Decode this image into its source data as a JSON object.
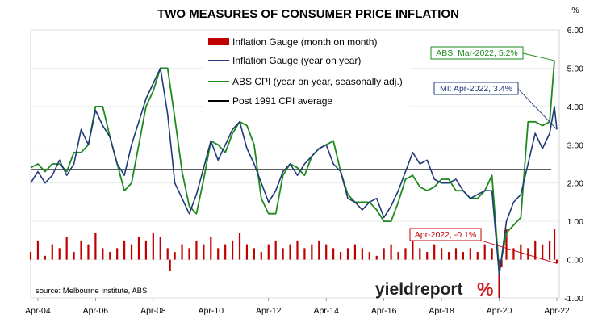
{
  "chart_data": {
    "type": "line",
    "title": "TWO MEASURES OF CONSUMER PRICE INFLATION",
    "y_unit_label": "%",
    "ylim": [
      -1.0,
      6.0
    ],
    "y_ticks": [
      "-1.00",
      "0.00",
      "1.00",
      "2.00",
      "3.00",
      "4.00",
      "5.00",
      "6.00"
    ],
    "x_ticks": [
      "Apr-04",
      "Apr-06",
      "Apr-08",
      "Apr-10",
      "Apr-12",
      "Apr-14",
      "Apr-16",
      "Apr-18",
      "Apr-20",
      "Apr-22"
    ],
    "legend": [
      {
        "label": "Inflation Gauge (month on month)",
        "color": "#c00000",
        "marker": "bar"
      },
      {
        "label": "Inflation Gauge (year on year)",
        "color": "#1f3a78",
        "marker": "line"
      },
      {
        "label": "ABS CPI (year on year, seasonally adj.)",
        "color": "#1e8a1e",
        "marker": "line"
      },
      {
        "label": "Post 1991 CPI average",
        "color": "#000000",
        "marker": "line"
      }
    ],
    "series": [
      {
        "name": "Inflation Gauge (month on month)",
        "type": "bar",
        "color": "#c00000",
        "points": [
          [
            "2004-01",
            0.2
          ],
          [
            "2004-04",
            0.5
          ],
          [
            "2004-07",
            0.1
          ],
          [
            "2004-10",
            0.4
          ],
          [
            "2005-01",
            0.3
          ],
          [
            "2005-04",
            0.6
          ],
          [
            "2005-07",
            0.2
          ],
          [
            "2005-10",
            0.5
          ],
          [
            "2006-01",
            0.4
          ],
          [
            "2006-04",
            0.7
          ],
          [
            "2006-07",
            0.3
          ],
          [
            "2006-10",
            0.2
          ],
          [
            "2007-01",
            0.3
          ],
          [
            "2007-04",
            0.5
          ],
          [
            "2007-07",
            0.4
          ],
          [
            "2007-10",
            0.6
          ],
          [
            "2008-01",
            0.5
          ],
          [
            "2008-04",
            0.7
          ],
          [
            "2008-07",
            0.6
          ],
          [
            "2008-10",
            0.3
          ],
          [
            "2008-11",
            -0.3
          ],
          [
            "2009-01",
            0.2
          ],
          [
            "2009-04",
            0.4
          ],
          [
            "2009-07",
            0.3
          ],
          [
            "2009-10",
            0.5
          ],
          [
            "2010-01",
            0.4
          ],
          [
            "2010-04",
            0.6
          ],
          [
            "2010-07",
            0.3
          ],
          [
            "2010-10",
            0.4
          ],
          [
            "2011-01",
            0.5
          ],
          [
            "2011-04",
            0.7
          ],
          [
            "2011-07",
            0.4
          ],
          [
            "2011-10",
            0.3
          ],
          [
            "2012-01",
            0.2
          ],
          [
            "2012-04",
            0.4
          ],
          [
            "2012-07",
            0.5
          ],
          [
            "2012-10",
            0.3
          ],
          [
            "2013-01",
            0.4
          ],
          [
            "2013-04",
            0.5
          ],
          [
            "2013-07",
            0.3
          ],
          [
            "2013-10",
            0.4
          ],
          [
            "2014-01",
            0.5
          ],
          [
            "2014-04",
            0.4
          ],
          [
            "2014-07",
            0.3
          ],
          [
            "2014-10",
            0.2
          ],
          [
            "2015-01",
            0.3
          ],
          [
            "2015-04",
            0.4
          ],
          [
            "2015-07",
            0.3
          ],
          [
            "2015-10",
            0.2
          ],
          [
            "2016-01",
            0.1
          ],
          [
            "2016-04",
            0.3
          ],
          [
            "2016-07",
            0.4
          ],
          [
            "2016-10",
            0.2
          ],
          [
            "2017-01",
            0.3
          ],
          [
            "2017-04",
            0.5
          ],
          [
            "2017-07",
            0.3
          ],
          [
            "2017-10",
            0.2
          ],
          [
            "2018-01",
            0.4
          ],
          [
            "2018-04",
            0.3
          ],
          [
            "2018-07",
            0.2
          ],
          [
            "2018-10",
            0.3
          ],
          [
            "2019-01",
            0.2
          ],
          [
            "2019-04",
            0.3
          ],
          [
            "2019-07",
            0.2
          ],
          [
            "2019-10",
            0.4
          ],
          [
            "2020-01",
            0.3
          ],
          [
            "2020-04",
            -1.0
          ],
          [
            "2020-05",
            -0.2
          ],
          [
            "2020-07",
            0.8
          ],
          [
            "2020-10",
            0.3
          ],
          [
            "2021-01",
            0.4
          ],
          [
            "2021-04",
            0.3
          ],
          [
            "2021-07",
            0.5
          ],
          [
            "2021-10",
            0.4
          ],
          [
            "2022-01",
            0.5
          ],
          [
            "2022-03",
            0.8
          ],
          [
            "2022-04",
            -0.1
          ]
        ]
      },
      {
        "name": "Inflation Gauge (year on year)",
        "type": "line",
        "color": "#1f3a78",
        "points": [
          [
            "2004-01",
            2.0
          ],
          [
            "2004-04",
            2.3
          ],
          [
            "2004-07",
            2.0
          ],
          [
            "2004-10",
            2.2
          ],
          [
            "2005-01",
            2.6
          ],
          [
            "2005-04",
            2.2
          ],
          [
            "2005-07",
            2.5
          ],
          [
            "2005-10",
            3.4
          ],
          [
            "2006-01",
            3.0
          ],
          [
            "2006-04",
            3.9
          ],
          [
            "2006-07",
            3.5
          ],
          [
            "2006-10",
            3.2
          ],
          [
            "2007-01",
            2.5
          ],
          [
            "2007-04",
            2.2
          ],
          [
            "2007-07",
            3.0
          ],
          [
            "2007-10",
            3.6
          ],
          [
            "2008-01",
            4.2
          ],
          [
            "2008-04",
            4.6
          ],
          [
            "2008-07",
            5.0
          ],
          [
            "2008-10",
            3.8
          ],
          [
            "2008-12",
            2.6
          ],
          [
            "2009-01",
            2.0
          ],
          [
            "2009-04",
            1.6
          ],
          [
            "2009-07",
            1.2
          ],
          [
            "2009-10",
            1.7
          ],
          [
            "2010-01",
            2.4
          ],
          [
            "2010-04",
            3.1
          ],
          [
            "2010-07",
            2.6
          ],
          [
            "2010-10",
            3.0
          ],
          [
            "2011-01",
            3.4
          ],
          [
            "2011-04",
            3.6
          ],
          [
            "2011-07",
            2.9
          ],
          [
            "2011-10",
            2.5
          ],
          [
            "2012-01",
            2.0
          ],
          [
            "2012-04",
            1.5
          ],
          [
            "2012-07",
            1.8
          ],
          [
            "2012-10",
            2.3
          ],
          [
            "2013-01",
            2.5
          ],
          [
            "2013-04",
            2.2
          ],
          [
            "2013-07",
            2.5
          ],
          [
            "2013-10",
            2.7
          ],
          [
            "2014-01",
            2.9
          ],
          [
            "2014-04",
            3.0
          ],
          [
            "2014-07",
            2.5
          ],
          [
            "2014-10",
            2.3
          ],
          [
            "2015-01",
            1.6
          ],
          [
            "2015-04",
            1.5
          ],
          [
            "2015-07",
            1.3
          ],
          [
            "2015-10",
            1.5
          ],
          [
            "2016-01",
            1.6
          ],
          [
            "2016-04",
            1.1
          ],
          [
            "2016-07",
            1.4
          ],
          [
            "2016-10",
            1.8
          ],
          [
            "2017-01",
            2.3
          ],
          [
            "2017-04",
            2.8
          ],
          [
            "2017-07",
            2.5
          ],
          [
            "2017-10",
            2.6
          ],
          [
            "2018-01",
            2.1
          ],
          [
            "2018-04",
            2.0
          ],
          [
            "2018-07",
            2.0
          ],
          [
            "2018-10",
            2.1
          ],
          [
            "2019-01",
            1.8
          ],
          [
            "2019-04",
            1.6
          ],
          [
            "2019-07",
            1.7
          ],
          [
            "2019-10",
            1.8
          ],
          [
            "2020-01",
            1.8
          ],
          [
            "2020-04",
            -0.4
          ],
          [
            "2020-07",
            1.0
          ],
          [
            "2020-10",
            1.5
          ],
          [
            "2021-01",
            1.7
          ],
          [
            "2021-04",
            2.5
          ],
          [
            "2021-07",
            3.3
          ],
          [
            "2021-10",
            2.9
          ],
          [
            "2022-01",
            3.3
          ],
          [
            "2022-03",
            4.0
          ],
          [
            "2022-04",
            3.4
          ]
        ]
      },
      {
        "name": "ABS CPI (year on year, seasonally adj.)",
        "type": "line",
        "color": "#1e8a1e",
        "points": [
          [
            "2004-01",
            2.4
          ],
          [
            "2004-04",
            2.5
          ],
          [
            "2004-07",
            2.3
          ],
          [
            "2004-10",
            2.5
          ],
          [
            "2005-01",
            2.5
          ],
          [
            "2005-04",
            2.3
          ],
          [
            "2005-07",
            2.8
          ],
          [
            "2005-10",
            2.8
          ],
          [
            "2006-01",
            3.0
          ],
          [
            "2006-04",
            4.0
          ],
          [
            "2006-07",
            4.0
          ],
          [
            "2006-10",
            3.2
          ],
          [
            "2007-01",
            2.5
          ],
          [
            "2007-04",
            1.8
          ],
          [
            "2007-07",
            2.0
          ],
          [
            "2007-10",
            3.0
          ],
          [
            "2008-01",
            4.0
          ],
          [
            "2008-04",
            4.4
          ],
          [
            "2008-07",
            5.0
          ],
          [
            "2008-10",
            5.0
          ],
          [
            "2009-01",
            3.7
          ],
          [
            "2009-04",
            2.3
          ],
          [
            "2009-07",
            1.4
          ],
          [
            "2009-10",
            1.2
          ],
          [
            "2010-01",
            2.1
          ],
          [
            "2010-04",
            3.1
          ],
          [
            "2010-07",
            3.0
          ],
          [
            "2010-10",
            2.8
          ],
          [
            "2011-01",
            3.3
          ],
          [
            "2011-04",
            3.6
          ],
          [
            "2011-07",
            3.5
          ],
          [
            "2011-10",
            3.0
          ],
          [
            "2012-01",
            1.6
          ],
          [
            "2012-04",
            1.2
          ],
          [
            "2012-07",
            1.2
          ],
          [
            "2012-10",
            2.2
          ],
          [
            "2013-01",
            2.5
          ],
          [
            "2013-04",
            2.4
          ],
          [
            "2013-07",
            2.2
          ],
          [
            "2013-10",
            2.7
          ],
          [
            "2014-01",
            2.9
          ],
          [
            "2014-04",
            3.0
          ],
          [
            "2014-07",
            3.1
          ],
          [
            "2014-10",
            2.3
          ],
          [
            "2015-01",
            1.7
          ],
          [
            "2015-04",
            1.5
          ],
          [
            "2015-07",
            1.5
          ],
          [
            "2015-10",
            1.5
          ],
          [
            "2016-01",
            1.3
          ],
          [
            "2016-04",
            1.0
          ],
          [
            "2016-07",
            1.0
          ],
          [
            "2016-10",
            1.5
          ],
          [
            "2017-01",
            2.1
          ],
          [
            "2017-04",
            2.2
          ],
          [
            "2017-07",
            1.9
          ],
          [
            "2017-10",
            1.8
          ],
          [
            "2018-01",
            1.9
          ],
          [
            "2018-04",
            2.1
          ],
          [
            "2018-07",
            2.1
          ],
          [
            "2018-10",
            1.8
          ],
          [
            "2019-01",
            1.8
          ],
          [
            "2019-04",
            1.6
          ],
          [
            "2019-07",
            1.6
          ],
          [
            "2019-10",
            1.8
          ],
          [
            "2020-01",
            2.2
          ],
          [
            "2020-04",
            -0.3
          ],
          [
            "2020-07",
            0.7
          ],
          [
            "2020-10",
            0.9
          ],
          [
            "2021-01",
            1.1
          ],
          [
            "2021-04",
            3.6
          ],
          [
            "2021-07",
            3.6
          ],
          [
            "2021-10",
            3.5
          ],
          [
            "2022-01",
            3.6
          ],
          [
            "2022-03",
            5.2
          ]
        ]
      },
      {
        "name": "Post 1991 CPI average",
        "type": "hline",
        "color": "#000000",
        "value": 2.35
      }
    ],
    "annotations": [
      {
        "text": "ABS: Mar-2022, 5.2%",
        "color": "#1e8a1e",
        "point": [
          "2022-03",
          5.2
        ]
      },
      {
        "text": "MI: Apr-2022, 3.4%",
        "color": "#1f3a78",
        "point": [
          "2022-04",
          3.4
        ]
      },
      {
        "text": "Apr-2022, -0.1%",
        "color": "#c00000",
        "point": [
          "2022-04",
          -0.1
        ]
      }
    ],
    "source": "source: Melbourne Institute, ABS",
    "logo": {
      "main": "yieldreport",
      "accent": "%"
    }
  }
}
